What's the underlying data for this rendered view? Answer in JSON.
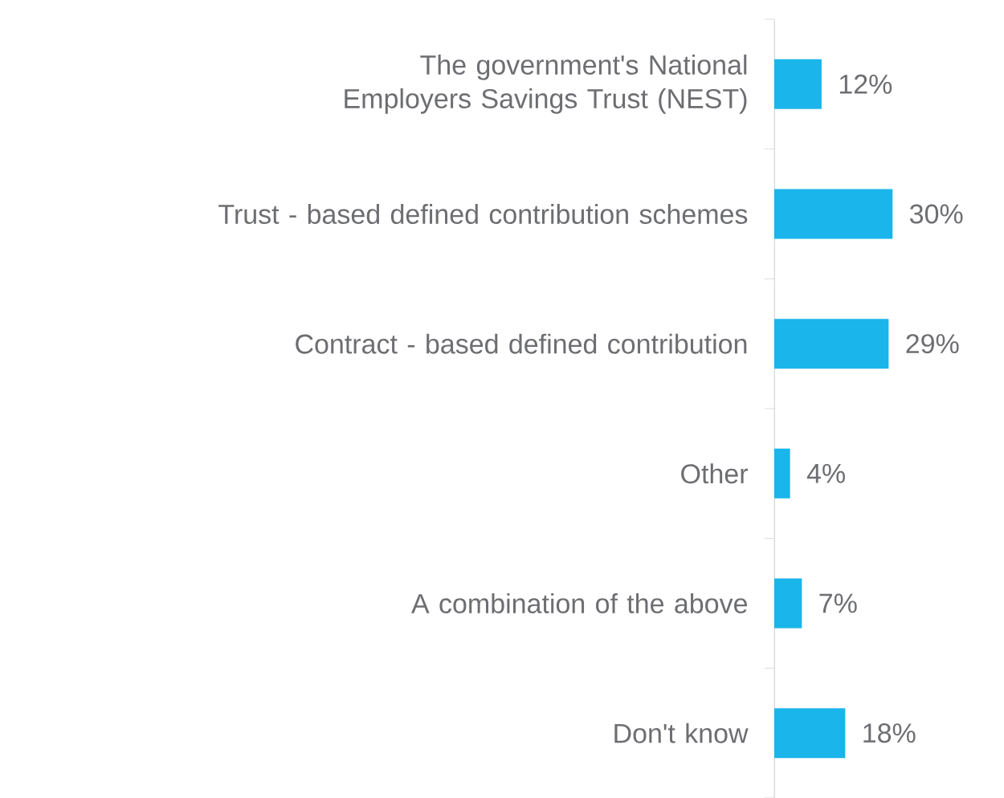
{
  "chart_data": {
    "type": "bar",
    "orientation": "horizontal",
    "categories": [
      "The government's National Employers Savings Trust (NEST)",
      "Trust - based defined contribution schemes",
      "Contract - based defined contribution",
      "Other",
      "A combination of the above",
      "Don't know"
    ],
    "values": [
      12,
      30,
      29,
      4,
      7,
      18
    ],
    "value_labels": [
      "12%",
      "30%",
      "29%",
      "4%",
      "7%",
      "18%"
    ],
    "color": "#1ab5ea"
  }
}
